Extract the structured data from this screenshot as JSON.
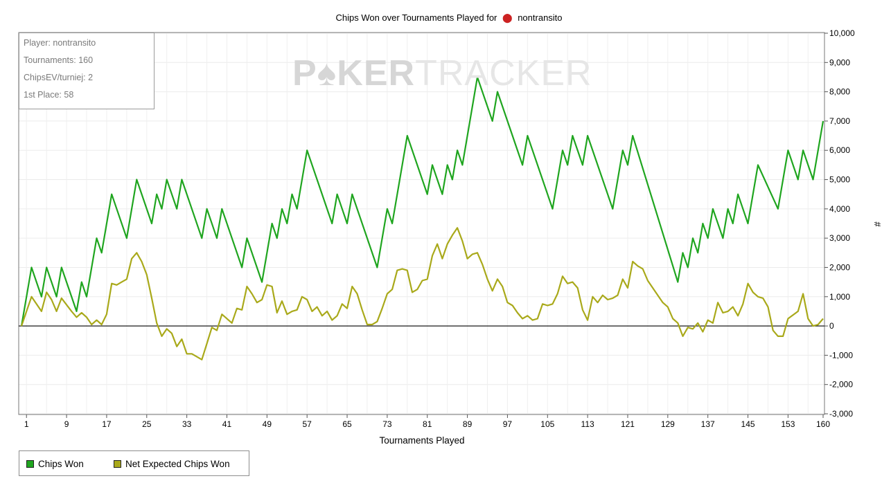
{
  "title": {
    "prefix": "Chips Won over Tournaments Played for",
    "player": "nontransito",
    "icon": "poker-chip-icon"
  },
  "stats_box": {
    "player": "Player: nontransito",
    "tournaments": "Tournaments: 160",
    "chipsev": "ChipsEV/turniej: 2",
    "first_place": "1st Place: 58"
  },
  "watermark": {
    "strong": "P♠KER",
    "light": "TRACKER"
  },
  "legend": [
    {
      "label": "Chips Won",
      "color": "#1fa51f"
    },
    {
      "label": "Net Expected Chips Won",
      "color": "#a9a91a"
    }
  ],
  "chart_data": {
    "type": "line",
    "title": "Chips Won over Tournaments Played for nontransito",
    "xlabel": "Tournaments Played",
    "ylabel": "#",
    "xlim": [
      0,
      160
    ],
    "ylim": [
      -3000,
      10000
    ],
    "x_ticks": [
      1,
      9,
      17,
      25,
      33,
      41,
      49,
      57,
      65,
      73,
      81,
      89,
      97,
      105,
      113,
      121,
      129,
      137,
      145,
      153,
      160
    ],
    "y_ticks": [
      10000,
      9000,
      8000,
      7000,
      6000,
      5000,
      4000,
      3000,
      2000,
      1000,
      0,
      -1000,
      -2000,
      -3000
    ],
    "y_tick_labels": [
      "10,000",
      "9,000",
      "8,000",
      "7,000",
      "6,000",
      "5,000",
      "4,000",
      "3,000",
      "2,000",
      "1,000",
      "0",
      "-1,000",
      "-2,000",
      "-3,000"
    ],
    "grid": true,
    "legend_position": "bottom-left",
    "series": [
      {
        "name": "Chips Won",
        "color": "#1fa51f",
        "points": [
          [
            0,
            0
          ],
          [
            2,
            2000
          ],
          [
            4,
            1000
          ],
          [
            5,
            2000
          ],
          [
            7,
            1000
          ],
          [
            8,
            2000
          ],
          [
            11,
            500
          ],
          [
            12,
            1500
          ],
          [
            13,
            1000
          ],
          [
            15,
            3000
          ],
          [
            16,
            2500
          ],
          [
            18,
            4500
          ],
          [
            21,
            3000
          ],
          [
            23,
            5000
          ],
          [
            26,
            3500
          ],
          [
            27,
            4500
          ],
          [
            28,
            4000
          ],
          [
            29,
            5000
          ],
          [
            31,
            4000
          ],
          [
            32,
            5000
          ],
          [
            36,
            3000
          ],
          [
            37,
            4000
          ],
          [
            39,
            3000
          ],
          [
            40,
            4000
          ],
          [
            44,
            2000
          ],
          [
            45,
            3000
          ],
          [
            48,
            1500
          ],
          [
            50,
            3500
          ],
          [
            51,
            3000
          ],
          [
            52,
            4000
          ],
          [
            53,
            3500
          ],
          [
            54,
            4500
          ],
          [
            55,
            4000
          ],
          [
            57,
            6000
          ],
          [
            62,
            3500
          ],
          [
            63,
            4500
          ],
          [
            64,
            4000
          ],
          [
            65,
            3500
          ],
          [
            66,
            4500
          ],
          [
            71,
            2000
          ],
          [
            73,
            4000
          ],
          [
            74,
            3500
          ],
          [
            77,
            6500
          ],
          [
            81,
            4500
          ],
          [
            82,
            5500
          ],
          [
            84,
            4500
          ],
          [
            85,
            5500
          ],
          [
            86,
            5000
          ],
          [
            87,
            6000
          ],
          [
            88,
            5500
          ],
          [
            91,
            8500
          ],
          [
            94,
            7000
          ],
          [
            95,
            8000
          ],
          [
            100,
            5500
          ],
          [
            101,
            6500
          ],
          [
            106,
            4000
          ],
          [
            108,
            6000
          ],
          [
            109,
            5500
          ],
          [
            110,
            6500
          ],
          [
            112,
            5500
          ],
          [
            113,
            6500
          ],
          [
            118,
            4000
          ],
          [
            120,
            6000
          ],
          [
            121,
            5500
          ],
          [
            122,
            6500
          ],
          [
            131,
            1500
          ],
          [
            132,
            2500
          ],
          [
            133,
            2000
          ],
          [
            134,
            3000
          ],
          [
            135,
            2500
          ],
          [
            136,
            3500
          ],
          [
            137,
            3000
          ],
          [
            138,
            4000
          ],
          [
            140,
            3000
          ],
          [
            141,
            4000
          ],
          [
            142,
            3500
          ],
          [
            143,
            4500
          ],
          [
            145,
            3500
          ],
          [
            147,
            5500
          ],
          [
            151,
            4000
          ],
          [
            153,
            6000
          ],
          [
            155,
            5000
          ],
          [
            156,
            6000
          ],
          [
            158,
            5000
          ],
          [
            160,
            7000
          ]
        ]
      },
      {
        "name": "Net Expected Chips Won",
        "color": "#a9a91a",
        "points": [
          [
            0,
            0
          ],
          [
            2,
            1000
          ],
          [
            4,
            500
          ],
          [
            5,
            1150
          ],
          [
            6,
            900
          ],
          [
            7,
            500
          ],
          [
            8,
            950
          ],
          [
            10,
            500
          ],
          [
            11,
            300
          ],
          [
            12,
            450
          ],
          [
            13,
            300
          ],
          [
            14,
            50
          ],
          [
            15,
            200
          ],
          [
            16,
            50
          ],
          [
            17,
            400
          ],
          [
            18,
            1450
          ],
          [
            19,
            1400
          ],
          [
            20,
            1500
          ],
          [
            21,
            1600
          ],
          [
            22,
            2300
          ],
          [
            23,
            2500
          ],
          [
            24,
            2200
          ],
          [
            25,
            1750
          ],
          [
            26,
            950
          ],
          [
            27,
            100
          ],
          [
            28,
            -350
          ],
          [
            29,
            -100
          ],
          [
            30,
            -250
          ],
          [
            31,
            -700
          ],
          [
            32,
            -450
          ],
          [
            33,
            -950
          ],
          [
            34,
            -950
          ],
          [
            36,
            -1150
          ],
          [
            37,
            -600
          ],
          [
            38,
            -50
          ],
          [
            39,
            -150
          ],
          [
            40,
            400
          ],
          [
            42,
            100
          ],
          [
            43,
            600
          ],
          [
            44,
            550
          ],
          [
            45,
            1350
          ],
          [
            46,
            1100
          ],
          [
            47,
            800
          ],
          [
            48,
            900
          ],
          [
            49,
            1400
          ],
          [
            50,
            1350
          ],
          [
            51,
            450
          ],
          [
            52,
            850
          ],
          [
            53,
            400
          ],
          [
            54,
            500
          ],
          [
            55,
            550
          ],
          [
            56,
            1000
          ],
          [
            57,
            900
          ],
          [
            58,
            500
          ],
          [
            59,
            650
          ],
          [
            60,
            350
          ],
          [
            61,
            500
          ],
          [
            62,
            200
          ],
          [
            63,
            350
          ],
          [
            64,
            750
          ],
          [
            65,
            600
          ],
          [
            66,
            1350
          ],
          [
            67,
            1100
          ],
          [
            68,
            550
          ],
          [
            69,
            50
          ],
          [
            70,
            50
          ],
          [
            71,
            150
          ],
          [
            72,
            600
          ],
          [
            73,
            1100
          ],
          [
            74,
            1250
          ],
          [
            75,
            1900
          ],
          [
            76,
            1950
          ],
          [
            77,
            1900
          ],
          [
            78,
            1150
          ],
          [
            79,
            1250
          ],
          [
            80,
            1550
          ],
          [
            81,
            1600
          ],
          [
            82,
            2400
          ],
          [
            83,
            2800
          ],
          [
            84,
            2300
          ],
          [
            85,
            2800
          ],
          [
            86,
            3100
          ],
          [
            87,
            3350
          ],
          [
            88,
            2900
          ],
          [
            89,
            2300
          ],
          [
            90,
            2450
          ],
          [
            91,
            2500
          ],
          [
            92,
            2100
          ],
          [
            93,
            1600
          ],
          [
            94,
            1200
          ],
          [
            95,
            1600
          ],
          [
            96,
            1350
          ],
          [
            97,
            800
          ],
          [
            98,
            700
          ],
          [
            99,
            450
          ],
          [
            100,
            250
          ],
          [
            101,
            350
          ],
          [
            102,
            200
          ],
          [
            103,
            250
          ],
          [
            104,
            750
          ],
          [
            105,
            700
          ],
          [
            106,
            750
          ],
          [
            107,
            1100
          ],
          [
            108,
            1700
          ],
          [
            109,
            1450
          ],
          [
            110,
            1500
          ],
          [
            111,
            1300
          ],
          [
            112,
            550
          ],
          [
            113,
            200
          ],
          [
            114,
            1000
          ],
          [
            115,
            800
          ],
          [
            116,
            1050
          ],
          [
            117,
            900
          ],
          [
            118,
            950
          ],
          [
            119,
            1050
          ],
          [
            120,
            1600
          ],
          [
            121,
            1300
          ],
          [
            122,
            2200
          ],
          [
            123,
            2050
          ],
          [
            124,
            1950
          ],
          [
            125,
            1550
          ],
          [
            127,
            1050
          ],
          [
            128,
            800
          ],
          [
            129,
            650
          ],
          [
            130,
            250
          ],
          [
            131,
            100
          ],
          [
            132,
            -350
          ],
          [
            133,
            -50
          ],
          [
            134,
            -100
          ],
          [
            135,
            100
          ],
          [
            136,
            -200
          ],
          [
            137,
            200
          ],
          [
            138,
            100
          ],
          [
            139,
            800
          ],
          [
            140,
            450
          ],
          [
            141,
            500
          ],
          [
            142,
            650
          ],
          [
            143,
            350
          ],
          [
            144,
            750
          ],
          [
            145,
            1450
          ],
          [
            146,
            1150
          ],
          [
            147,
            1000
          ],
          [
            148,
            950
          ],
          [
            149,
            650
          ],
          [
            150,
            -150
          ],
          [
            151,
            -350
          ],
          [
            152,
            -350
          ],
          [
            153,
            250
          ],
          [
            155,
            500
          ],
          [
            156,
            1100
          ],
          [
            157,
            250
          ],
          [
            158,
            0
          ],
          [
            159,
            50
          ],
          [
            160,
            250
          ]
        ]
      }
    ]
  }
}
